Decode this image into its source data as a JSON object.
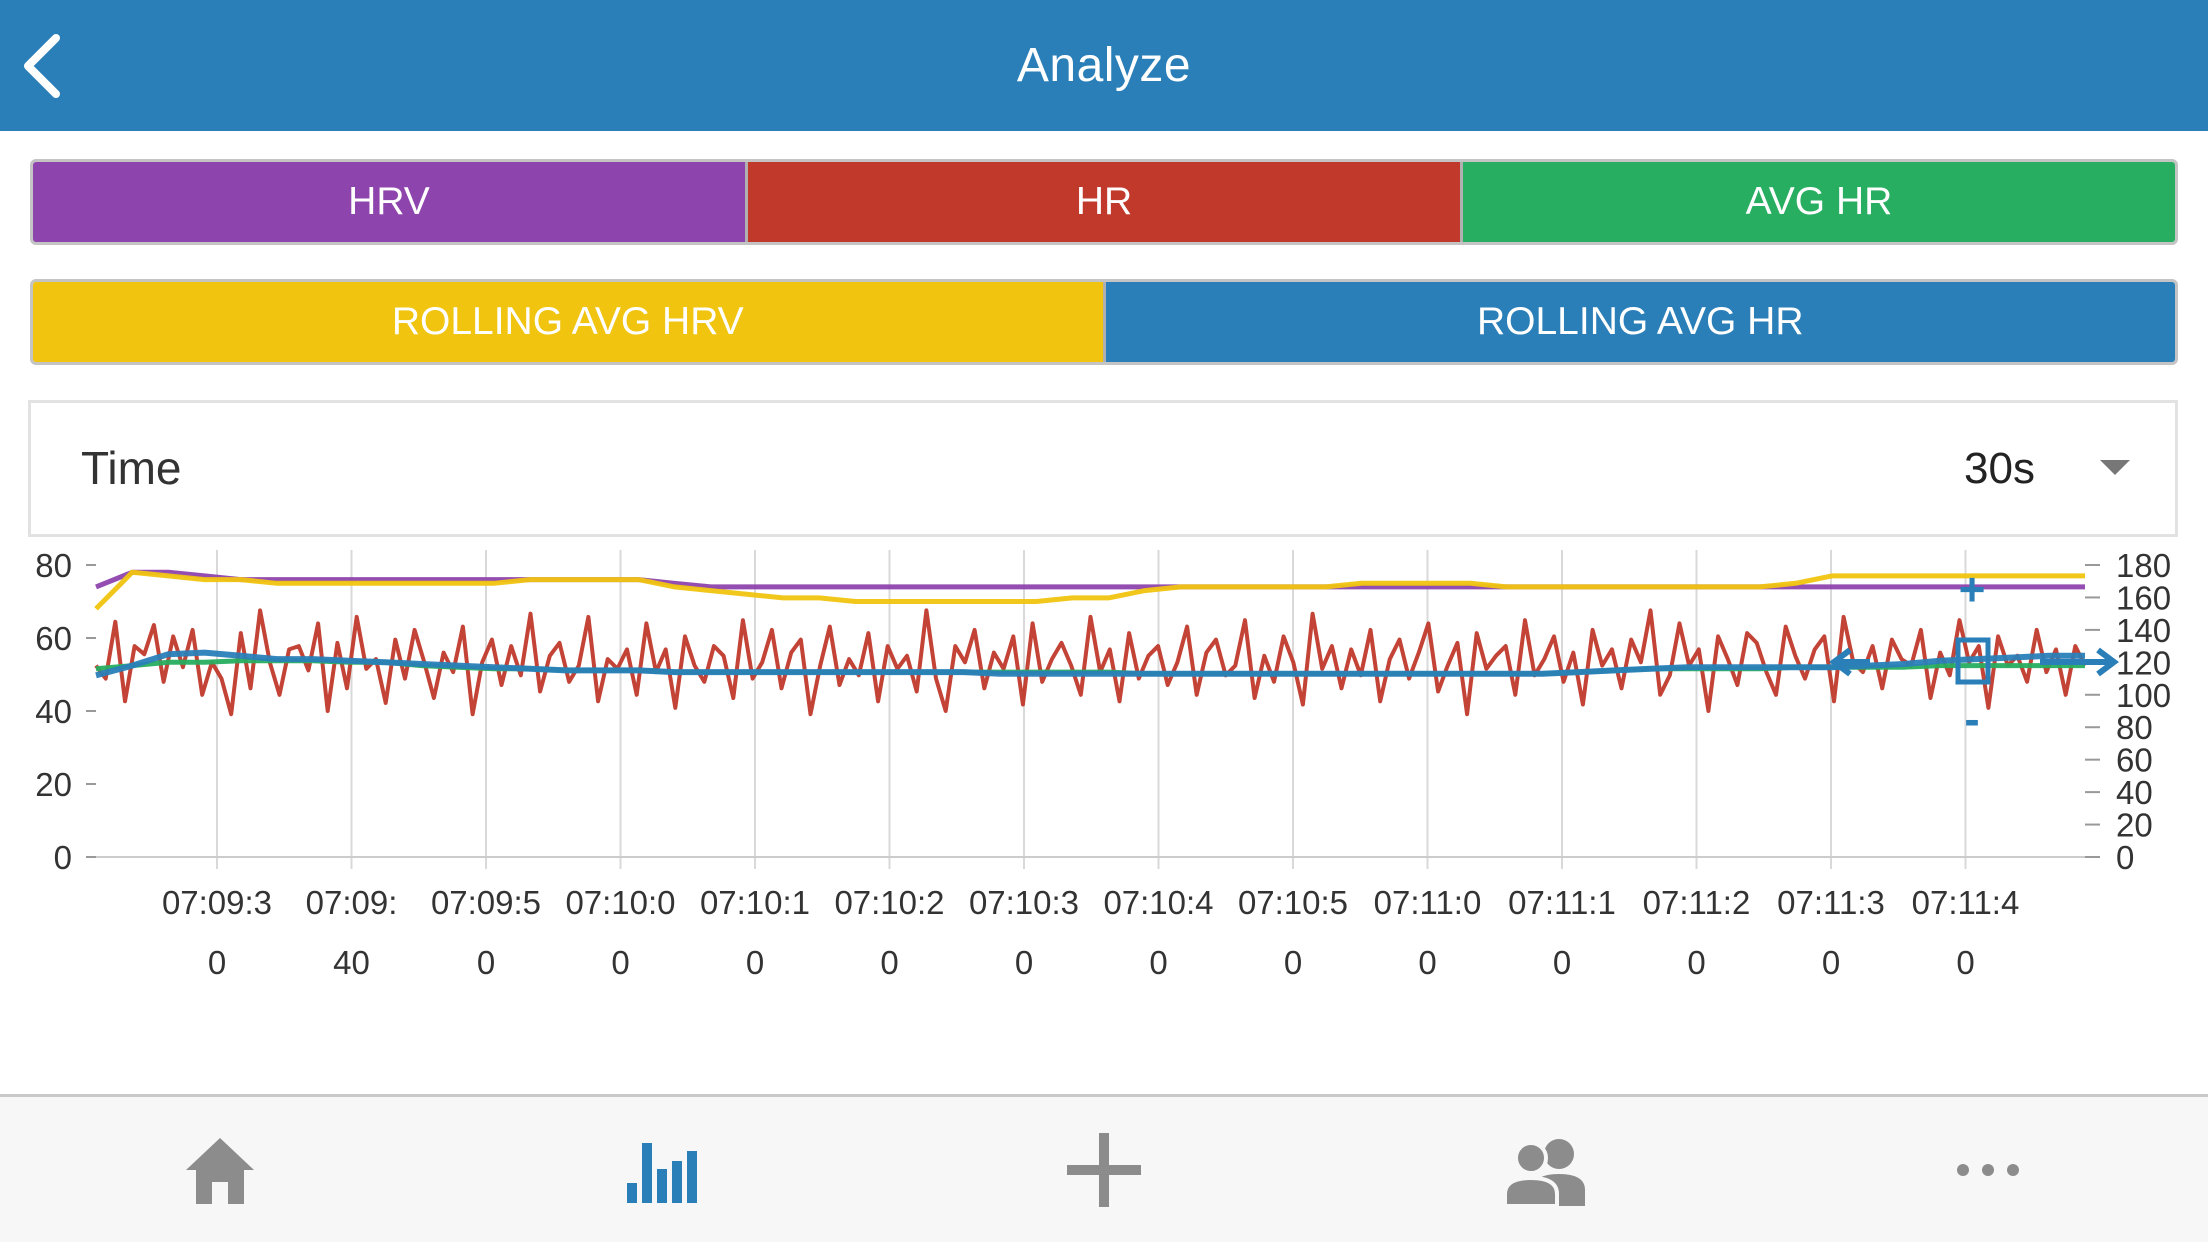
{
  "header": {
    "title": "Analyze"
  },
  "filters": {
    "row1": [
      {
        "label": "HRV",
        "color": "#8e44ad"
      },
      {
        "label": "HR",
        "color": "#c0392b"
      },
      {
        "label": "AVG HR",
        "color": "#27ae60"
      }
    ],
    "row2": [
      {
        "label": "ROLLING AVG HRV",
        "color": "#f1c40f"
      },
      {
        "label": "ROLLING AVG HR",
        "color": "#2a7fb8"
      }
    ]
  },
  "range_select": {
    "label": "Time",
    "value": "30s"
  },
  "chart_data": {
    "type": "line",
    "left_axis": {
      "ticks": [
        "80",
        "60",
        "40",
        "20",
        "0"
      ],
      "ylim": [
        0,
        80
      ]
    },
    "right_axis": {
      "ticks": [
        "180",
        "160",
        "140",
        "120",
        "100",
        "80",
        "60",
        "40",
        "20",
        "0"
      ],
      "ylim": [
        0,
        180
      ]
    },
    "x_tick_labels": [
      {
        "line1": "07:09:3",
        "line2": "0"
      },
      {
        "line1": "07:09:",
        "line2": "40"
      },
      {
        "line1": "07:09:5",
        "line2": "0"
      },
      {
        "line1": "07:10:0",
        "line2": "0"
      },
      {
        "line1": "07:10:1",
        "line2": "0"
      },
      {
        "line1": "07:10:2",
        "line2": "0"
      },
      {
        "line1": "07:10:3",
        "line2": "0"
      },
      {
        "line1": "07:10:4",
        "line2": "0"
      },
      {
        "line1": "07:10:5",
        "line2": "0"
      },
      {
        "line1": "07:11:0",
        "line2": "0"
      },
      {
        "line1": "07:11:1",
        "line2": "0"
      },
      {
        "line1": "07:11:2",
        "line2": "0"
      },
      {
        "line1": "07:11:3",
        "line2": "0"
      },
      {
        "line1": "07:11:4",
        "line2": "0"
      }
    ],
    "zoom_controls": {
      "plus": "+",
      "minus": "-"
    },
    "series": [
      {
        "name": "HRV",
        "axis": "left",
        "color": "#8e44ad",
        "values": [
          74,
          78,
          78,
          77,
          76,
          76,
          76,
          76,
          76,
          76,
          76,
          76,
          76,
          76,
          76,
          76,
          75,
          74,
          74,
          74,
          74,
          74,
          74,
          74,
          74,
          74,
          74,
          74,
          74,
          74,
          74,
          74,
          74,
          74,
          74,
          74,
          74,
          74,
          74,
          74,
          74,
          74,
          74,
          74,
          74,
          74,
          74,
          74,
          74,
          74,
          74,
          74,
          74,
          74,
          74,
          74
        ]
      },
      {
        "name": "ROLLING AVG HRV",
        "axis": "left",
        "color": "#f1c40f",
        "values": [
          68,
          78,
          77,
          76,
          76,
          75,
          75,
          75,
          75,
          75,
          75,
          75,
          76,
          76,
          76,
          76,
          74,
          73,
          72,
          71,
          71,
          70,
          70,
          70,
          70,
          70,
          70,
          71,
          71,
          73,
          74,
          74,
          74,
          74,
          74,
          75,
          75,
          75,
          75,
          74,
          74,
          74,
          74,
          74,
          74,
          74,
          74,
          75,
          77,
          77,
          77,
          77,
          77,
          77,
          77,
          77
        ]
      },
      {
        "name": "AVG HR",
        "axis": "right",
        "color": "#27ae60",
        "values": [
          116,
          118,
          120,
          120,
          121,
          121,
          121,
          120,
          120,
          118,
          117,
          116,
          116,
          115,
          115,
          115,
          114,
          114,
          114,
          114,
          114,
          114,
          114,
          114,
          114,
          114,
          114,
          114,
          114,
          113,
          113,
          113,
          113,
          113,
          113,
          113,
          113,
          113,
          113,
          113,
          113,
          114,
          115,
          116,
          116,
          116,
          116,
          117,
          117,
          117,
          117,
          118,
          118,
          118,
          118,
          118
        ]
      },
      {
        "name": "ROLLING AVG HR",
        "axis": "right",
        "color": "#2a7fb8",
        "values": [
          112,
          118,
          125,
          126,
          124,
          122,
          122,
          121,
          120,
          119,
          118,
          117,
          116,
          115,
          115,
          115,
          114,
          114,
          114,
          114,
          114,
          114,
          114,
          114,
          114,
          113,
          113,
          113,
          113,
          113,
          113,
          113,
          113,
          113,
          113,
          113,
          113,
          113,
          113,
          113,
          113,
          114,
          115,
          116,
          117,
          117,
          117,
          117,
          117,
          118,
          119,
          121,
          122,
          123,
          124,
          124
        ]
      },
      {
        "name": "HR",
        "axis": "right",
        "color": "#c0392b",
        "values": [
          118,
          110,
          145,
          96,
          130,
          125,
          143,
          108,
          136,
          117,
          140,
          100,
          120,
          110,
          88,
          138,
          104,
          152,
          120,
          100,
          128,
          130,
          115,
          144,
          90,
          132,
          104,
          148,
          116,
          122,
          95,
          134,
          110,
          140,
          120,
          98,
          126,
          114,
          142,
          88,
          120,
          134,
          106,
          130,
          112,
          150,
          102,
          124,
          132,
          108,
          118,
          148,
          96,
          122,
          116,
          128,
          100,
          144,
          114,
          128,
          92,
          136,
          118,
          108,
          130,
          124,
          98,
          146,
          110,
          120,
          140,
          104,
          126,
          134,
          88,
          118,
          142,
          106,
          122,
          112,
          138,
          96,
          130,
          116,
          124,
          102,
          152,
          110,
          90,
          130,
          120,
          140,
          104,
          126,
          116,
          136,
          94,
          144,
          108,
          122,
          132,
          118,
          100,
          148,
          114,
          128,
          96,
          138,
          110,
          124,
          130,
          106,
          120,
          142,
          100,
          126,
          134,
          112,
          118,
          146,
          98,
          124,
          108,
          136,
          120,
          94,
          150,
          116,
          130,
          104,
          128,
          112,
          140,
          96,
          122,
          134,
          110,
          126,
          144,
          102,
          118,
          132,
          88,
          138,
          116,
          124,
          130,
          100,
          146,
          112,
          122,
          136,
          108,
          126,
          94,
          140,
          118,
          128,
          104,
          134,
          120,
          152,
          100,
          112,
          144,
          118,
          128,
          90,
          136,
          122,
          106,
          138,
          132,
          114,
          100,
          142,
          124,
          110,
          128,
          136,
          96,
          148,
          120,
          114,
          130,
          104,
          134,
          122,
          118,
          140,
          98,
          126,
          112,
          146,
          120,
          130,
          92,
          136,
          118,
          124,
          108,
          140,
          114,
          128,
          100,
          130,
          118
        ]
      }
    ]
  },
  "bottom_nav": {
    "items": [
      {
        "name": "home",
        "active": false
      },
      {
        "name": "analyze",
        "active": true
      },
      {
        "name": "add",
        "active": false
      },
      {
        "name": "community",
        "active": false
      },
      {
        "name": "more",
        "active": false
      }
    ],
    "active_color": "#2a7fb8",
    "inactive_color": "#8c8c8c"
  }
}
